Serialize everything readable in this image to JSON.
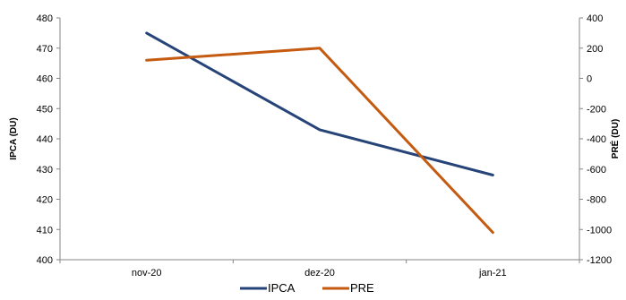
{
  "chart_data": {
    "type": "line",
    "categories": [
      "nov-20",
      "dez-20",
      "jan-21"
    ],
    "y_left": {
      "label": "IPCA (DU)",
      "range": [
        400,
        480
      ],
      "ticks": [
        400,
        410,
        420,
        430,
        440,
        450,
        460,
        470,
        480
      ]
    },
    "y_right": {
      "label": "PRÉ (DU)",
      "range": [
        -1200,
        400
      ],
      "ticks": [
        400,
        200,
        0,
        -200,
        -400,
        -600,
        -800,
        -1000,
        -1200
      ]
    },
    "series": [
      {
        "name": "IPCA",
        "axis": "left",
        "color": "#264478",
        "values": [
          475,
          443,
          428
        ]
      },
      {
        "name": "PRE",
        "axis": "right",
        "color": "#C55A11",
        "values": [
          120,
          200,
          -1020
        ]
      }
    ],
    "grid": false,
    "legend_position": "bottom"
  }
}
